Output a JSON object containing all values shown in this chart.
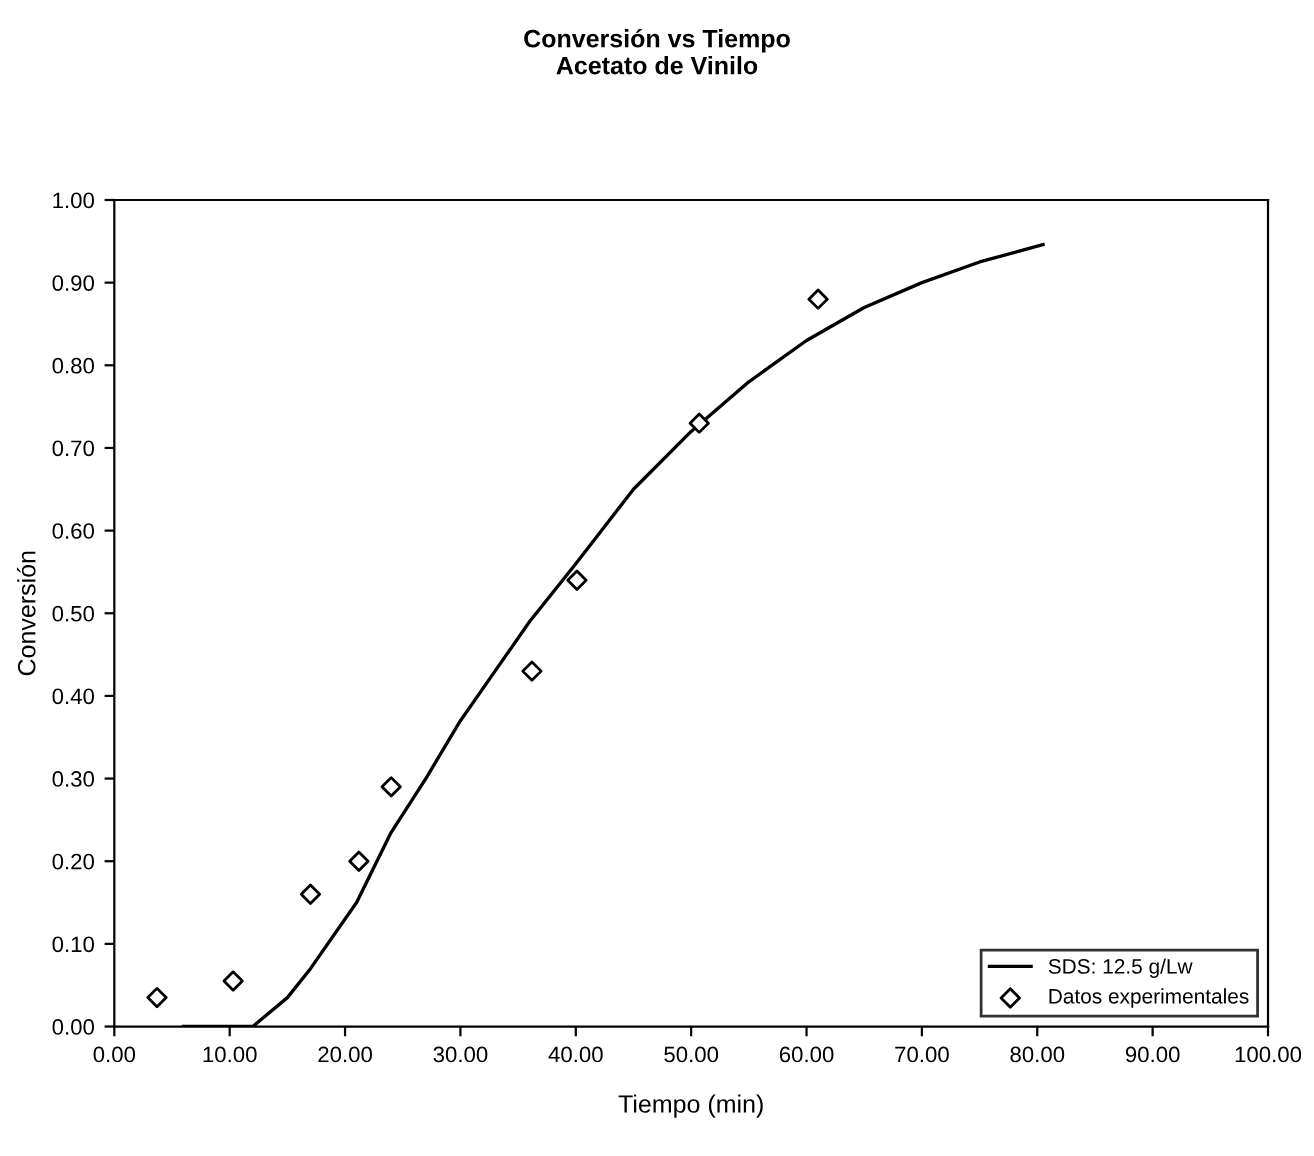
{
  "chart_data": {
    "type": "scatter",
    "title": "Conversión vs Tiempo\nAcetato de Vinilo",
    "xlabel": "Tiempo (min)",
    "ylabel": "Conversión",
    "xlim": [
      0,
      100
    ],
    "ylim": [
      0,
      1
    ],
    "xticks": [
      {
        "value": 0,
        "label": "0.00"
      },
      {
        "value": 10,
        "label": "10.00"
      },
      {
        "value": 20,
        "label": "20.00"
      },
      {
        "value": 30,
        "label": "30.00"
      },
      {
        "value": 40,
        "label": "40.00"
      },
      {
        "value": 50,
        "label": "50.00"
      },
      {
        "value": 60,
        "label": "60.00"
      },
      {
        "value": 70,
        "label": "70.00"
      },
      {
        "value": 80,
        "label": "80.00"
      },
      {
        "value": 90,
        "label": "90.00"
      },
      {
        "value": 100,
        "label": "100.00"
      }
    ],
    "yticks": [
      {
        "value": 0,
        "label": "0.00"
      },
      {
        "value": 0.1,
        "label": "0.10"
      },
      {
        "value": 0.2,
        "label": "0.20"
      },
      {
        "value": 0.3,
        "label": "0.30"
      },
      {
        "value": 0.4,
        "label": "0.40"
      },
      {
        "value": 0.5,
        "label": "0.50"
      },
      {
        "value": 0.6,
        "label": "0.60"
      },
      {
        "value": 0.7,
        "label": "0.70"
      },
      {
        "value": 0.8,
        "label": "0.80"
      },
      {
        "value": 0.9,
        "label": "0.90"
      },
      {
        "value": 1.0,
        "label": "1.00"
      }
    ],
    "grid": false,
    "legend": "bottom right",
    "series": [
      {
        "name": "SDS: 12.5 g/Lw",
        "type": "line",
        "color": "#000000",
        "marker": "none",
        "line_style": "solid",
        "x": [
          6,
          12,
          15,
          17,
          21,
          24,
          27,
          30,
          33,
          36,
          40,
          45,
          50,
          55,
          60,
          65,
          70,
          75,
          80.5
        ],
        "values": [
          0,
          0,
          0.035,
          0.07,
          0.15,
          0.235,
          0.3,
          0.37,
          0.43,
          0.49,
          0.56,
          0.65,
          0.72,
          0.78,
          0.83,
          0.87,
          0.9,
          0.925,
          0.946
        ]
      },
      {
        "name": "Datos experimentales",
        "color": "#000000",
        "marker": "diamond",
        "x": [
          3.7,
          10.3,
          17.0,
          21.2,
          24.0,
          36.2,
          40.1,
          50.7,
          61.0
        ],
        "values": [
          0.035,
          0.055,
          0.16,
          0.2,
          0.29,
          0.43,
          0.54,
          0.73,
          0.88
        ]
      }
    ]
  }
}
